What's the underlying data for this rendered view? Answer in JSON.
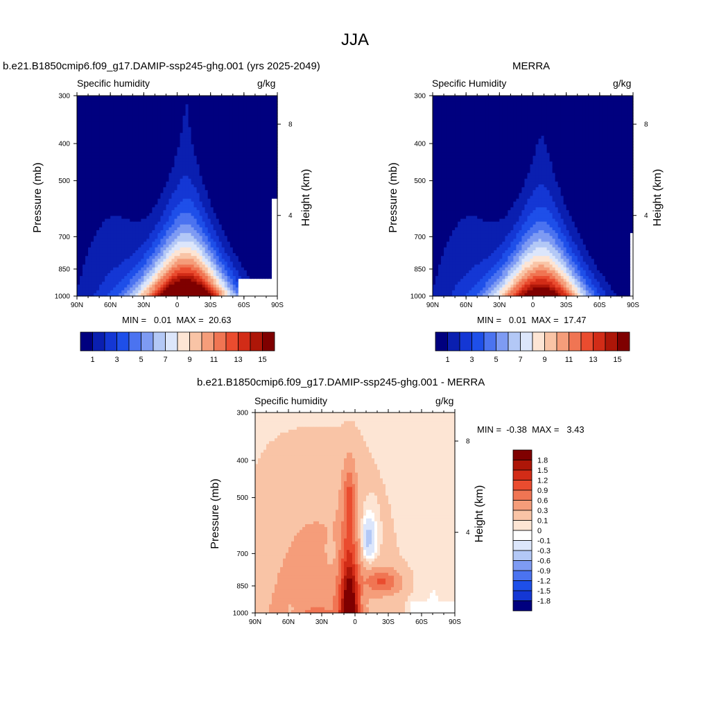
{
  "figure": {
    "title": "JJA"
  },
  "chart_data": [
    {
      "type": "heatmap",
      "panel_title": "b.e21.B1850cmip6.f09_g17.DAMIP-ssp245-ghg.001 (yrs 2025-2049)",
      "left_label": "Specific humidity",
      "right_label": "g/kg",
      "ylabel": "Pressure (mb)",
      "ylabel_right": "Height (km)",
      "x_ticks": [
        "90N",
        "60N",
        "30N",
        "0",
        "30S",
        "60S",
        "90S"
      ],
      "y_ticks": [
        "300",
        "400",
        "500",
        "700",
        "850",
        "1000"
      ],
      "y_right_ticks": [
        "8",
        "4"
      ],
      "x_range": [
        90,
        -90
      ],
      "y_range": [
        1000,
        300
      ],
      "y_scale": "log",
      "min_max_text": "MIN =   0.01  MAX =  20.63",
      "min": 0.01,
      "max": 20.63,
      "colorbar": {
        "orientation": "horizontal",
        "levels": [
          1,
          2,
          3,
          4,
          5,
          6,
          7,
          8,
          9,
          10,
          11,
          12,
          13,
          14,
          15
        ],
        "tick_labels": [
          "1",
          "3",
          "5",
          "7",
          "9",
          "11",
          "13",
          "15"
        ],
        "colors": [
          "#00007f",
          "#0a1fb0",
          "#1437d4",
          "#1e4fe9",
          "#4b73f0",
          "#7e9bf3",
          "#b3c8f6",
          "#dce6fb",
          "#fde5d4",
          "#f9c4a6",
          "#f59d7a",
          "#f07553",
          "#ea4c2f",
          "#d22c17",
          "#ad1608",
          "#7f0000"
        ]
      }
    },
    {
      "type": "heatmap",
      "panel_title": "MERRA",
      "left_label": "Specific Humidity",
      "right_label": "g/kg",
      "ylabel": "Pressure (mb)",
      "ylabel_right": "Height (km)",
      "x_ticks": [
        "90N",
        "60N",
        "30N",
        "0",
        "30S",
        "60S",
        "90S"
      ],
      "y_ticks": [
        "300",
        "400",
        "500",
        "700",
        "850",
        "1000"
      ],
      "y_right_ticks": [
        "8",
        "4"
      ],
      "x_range": [
        90,
        -90
      ],
      "y_range": [
        1000,
        300
      ],
      "y_scale": "log",
      "min_max_text": "MIN =   0.01  MAX =  17.47",
      "min": 0.01,
      "max": 17.47,
      "colorbar": {
        "orientation": "horizontal",
        "levels": [
          1,
          2,
          3,
          4,
          5,
          6,
          7,
          8,
          9,
          10,
          11,
          12,
          13,
          14,
          15
        ],
        "tick_labels": [
          "1",
          "3",
          "5",
          "7",
          "9",
          "11",
          "13",
          "15"
        ],
        "colors": [
          "#00007f",
          "#0a1fb0",
          "#1437d4",
          "#1e4fe9",
          "#4b73f0",
          "#7e9bf3",
          "#b3c8f6",
          "#dce6fb",
          "#fde5d4",
          "#f9c4a6",
          "#f59d7a",
          "#f07553",
          "#ea4c2f",
          "#d22c17",
          "#ad1608",
          "#7f0000"
        ]
      }
    },
    {
      "type": "heatmap",
      "panel_title": "b.e21.B1850cmip6.f09_g17.DAMIP-ssp245-ghg.001 - MERRA",
      "left_label": "Specific humidity",
      "right_label": "g/kg",
      "ylabel": "Pressure (mb)",
      "ylabel_right": "Height (km)",
      "x_ticks": [
        "90N",
        "60N",
        "30N",
        "0",
        "30S",
        "60S",
        "90S"
      ],
      "y_ticks": [
        "300",
        "400",
        "500",
        "700",
        "850",
        "1000"
      ],
      "y_right_ticks": [
        "8",
        "4"
      ],
      "x_range": [
        90,
        -90
      ],
      "y_range": [
        1000,
        300
      ],
      "y_scale": "log",
      "min_max_text": "MIN =  -0.38  MAX =   3.43",
      "min": -0.38,
      "max": 3.43,
      "colorbar": {
        "orientation": "vertical",
        "levels": [
          1.8,
          1.5,
          1.2,
          0.9,
          0.6,
          0.3,
          0.1,
          0,
          -0.1,
          -0.3,
          -0.6,
          -0.9,
          -1.2,
          -1.5,
          -1.8
        ],
        "tick_labels": [
          "1.8",
          "1.5",
          "1.2",
          "0.9",
          "0.6",
          "0.3",
          "0.1",
          "0",
          "-0.1",
          "-0.3",
          "-0.6",
          "-0.9",
          "-1.2",
          "-1.5",
          "-1.8"
        ],
        "colors": [
          "#7f0000",
          "#ad1608",
          "#d22c17",
          "#ea4c2f",
          "#f07553",
          "#f59d7a",
          "#f9c4a6",
          "#fde5d4",
          "#ffffff",
          "#dce6fb",
          "#b3c8f6",
          "#7e9bf3",
          "#4b73f0",
          "#1e4fe9",
          "#1437d4",
          "#00007f"
        ]
      }
    }
  ]
}
